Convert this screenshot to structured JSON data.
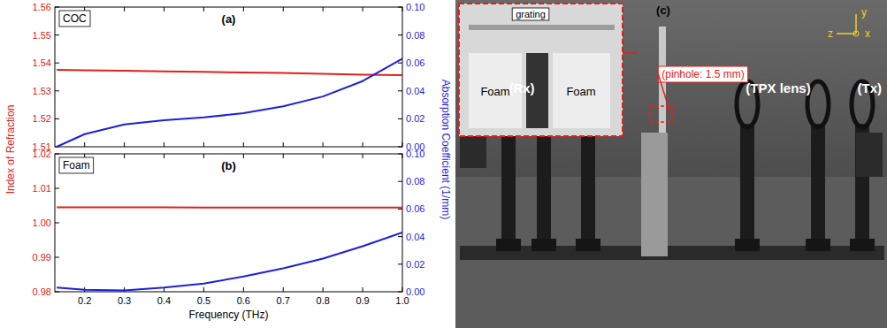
{
  "chart_data": [
    {
      "type": "line",
      "title": "(a)",
      "annotations": [
        "COC"
      ],
      "y_label": "Index of Refraction",
      "y2_label": "Absorption Coefficient (1/mm)",
      "x": [
        0.13,
        0.2,
        0.3,
        0.4,
        0.5,
        0.6,
        0.7,
        0.8,
        0.9,
        1.0
      ],
      "series": [
        {
          "color": "#e0201b",
          "values": [
            1.5375,
            1.5374,
            1.5372,
            1.537,
            1.5368,
            1.5366,
            1.5364,
            1.5361,
            1.5358,
            1.5356
          ]
        },
        {
          "color": "#1f1fd6",
          "axis": "y2",
          "values": [
            0.0,
            0.009,
            0.016,
            0.019,
            0.021,
            0.024,
            0.029,
            0.036,
            0.047,
            0.063
          ]
        }
      ],
      "xlim": [
        0.125,
        1.0
      ],
      "xticks": [
        0.2,
        0.3,
        0.4,
        0.5,
        0.6,
        0.7,
        0.8,
        0.9,
        {
          "value": 1,
          "label": "1.0"
        }
      ],
      "ylim": [
        1.51,
        1.56
      ],
      "yticks": [
        1.51,
        1.52,
        1.53,
        1.54,
        1.55,
        1.56
      ],
      "y2lim": [
        0,
        0.1
      ],
      "y2ticks": [
        {
          "value": 0,
          "label": "0.00"
        },
        0.02,
        0.04,
        0.06,
        0.08,
        {
          "value": 0.1,
          "label": "0.10"
        }
      ],
      "tick_labels": "y",
      "grid": false
    },
    {
      "type": "line",
      "title": "(b)",
      "annotations": [
        "Foam"
      ],
      "x_label": "Frequency (THz)",
      "x": [
        0.13,
        0.2,
        0.3,
        0.4,
        0.5,
        0.6,
        0.7,
        0.8,
        0.9,
        1.0
      ],
      "series": [
        {
          "color": "#e0201b",
          "values": [
            1.0045,
            1.0045,
            1.0045,
            1.0045,
            1.0044,
            1.0044,
            1.0044,
            1.0044,
            1.0044,
            1.0044
          ]
        },
        {
          "color": "#1f1fd6",
          "axis": "y2",
          "values": [
            0.003,
            0.0015,
            0.001,
            0.003,
            0.006,
            0.011,
            0.017,
            0.024,
            0.033,
            0.043
          ]
        }
      ],
      "xlim": [
        0.125,
        1.0
      ],
      "xticks": [
        0.2,
        0.3,
        0.4,
        0.5,
        0.6,
        0.7,
        0.8,
        0.9,
        {
          "value": 1,
          "label": "1.0"
        }
      ],
      "ylim": [
        0.98,
        1.02
      ],
      "yticks": [
        0.98,
        0.99,
        {
          "value": 1,
          "label": "1.00"
        },
        1.01,
        1.02
      ],
      "y2lim": [
        0,
        0.1
      ],
      "y2ticks": [
        {
          "value": 0,
          "label": "0.00"
        },
        0.02,
        0.04,
        0.06,
        0.08,
        {
          "value": 0.1,
          "label": "0.10"
        }
      ],
      "grid": false
    }
  ],
  "photo": {
    "panel": "(c)",
    "inset_labels": [
      "grating",
      "Foam",
      "Foam"
    ],
    "pinhole_label": "(pinhole: 1.5 mm)",
    "component_labels": [
      "(Rx)",
      "(TPX lens)",
      "(Tx)"
    ],
    "axes_labels": [
      "y",
      "z",
      "x"
    ]
  }
}
